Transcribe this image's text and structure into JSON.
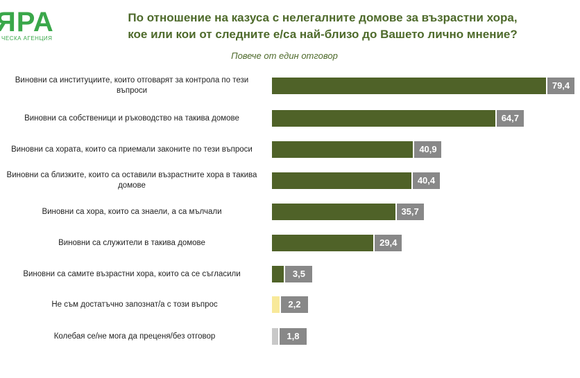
{
  "logo": {
    "mark": "ЯРА",
    "tagline": "ЧЕСКА АГЕНЦИЯ"
  },
  "chart_data": {
    "type": "bar",
    "orientation": "horizontal",
    "title": "По отношение на казуса с нелегалните домове за възрастни хора, кое или кои от следните е/са най-близо до Вашето лично мнение?",
    "title_lines": [
      "По отношение на казуса с нелегалните домове за възрастни хора,",
      "кое или кои от следните е/са най-близо до Вашето лично мнение?"
    ],
    "subtitle": "Повече от един отговор",
    "xlim": [
      0,
      100
    ],
    "grid": false,
    "legend": "none",
    "categories": [
      "Виновни са институциите, които отговарят за контрола по тези въпроси",
      "Виновни са собственици и ръководство на такива домове",
      "Виновни са хората, които са приемали законите по тези въпроси",
      "Виновни са близките, които са оставили възрастните хора в такива домове",
      "Виновни са хора, които са знаели, а са мълчали",
      "Виновни са служители в такива домове",
      "Виновни са самите възрастни хора, които са се съгласили",
      "Не съм достатъчно запознат/а с този въпрос",
      "Колебая се/не мога да преценя/без отговор"
    ],
    "category_lines": [
      [
        "Виновни са институциите, които отговарят за контрола по тези",
        "въпроси"
      ],
      [
        "Виновни са собственици и ръководство на такива домове"
      ],
      [
        "Виновни са хората, които са приемали законите по тези въпроси"
      ],
      [
        "Виновни са близките, които са оставили възрастните хора в такива",
        "домове"
      ],
      [
        "Виновни са хора, които са знаели, а са мълчали"
      ],
      [
        "Виновни са служители в такива домове"
      ],
      [
        "Виновни са самите възрастни хора, които са се съгласили"
      ],
      [
        "Не съм достатъчно запознат/а с този въпрос"
      ],
      [
        "Колебая се/не мога да преценя/без отговор"
      ]
    ],
    "values": [
      79.4,
      64.7,
      40.9,
      40.4,
      35.7,
      29.4,
      3.5,
      2.2,
      1.8
    ],
    "value_labels": [
      "79,4",
      "64,7",
      "40,9",
      "40,4",
      "35,7",
      "29,4",
      "3,5",
      "2,2",
      "1,8"
    ],
    "bar_colors": [
      "#4f6228",
      "#4f6228",
      "#4f6228",
      "#4f6228",
      "#4f6228",
      "#4f6228",
      "#4f6228",
      "#f8e99a",
      "#c8c8c8"
    ]
  }
}
